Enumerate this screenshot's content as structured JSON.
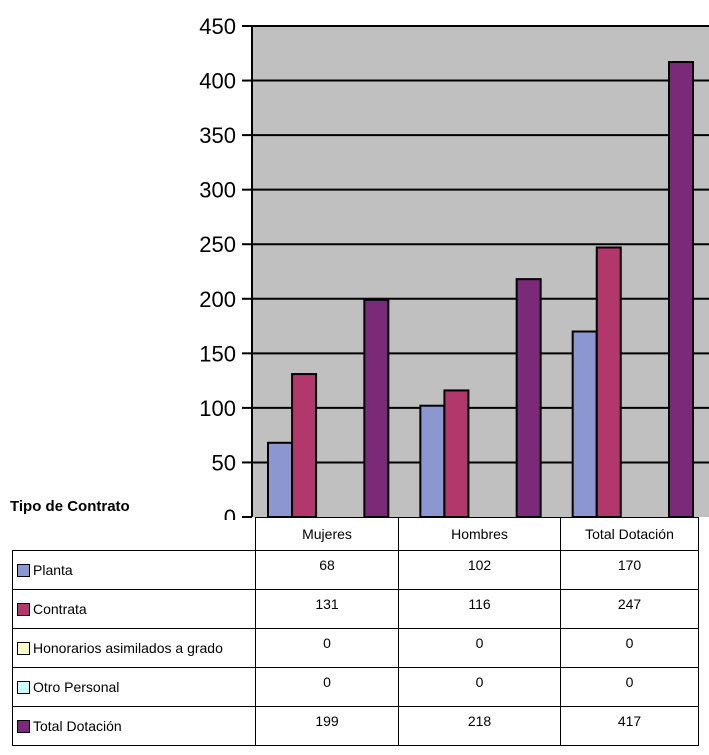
{
  "chart_data": {
    "type": "bar",
    "title": "",
    "xlabel": "",
    "ylabel": "",
    "ylim": [
      0,
      450
    ],
    "yticks": [
      0,
      50,
      100,
      150,
      200,
      250,
      300,
      350,
      400,
      450
    ],
    "grid": true,
    "categories": [
      "Mujeres",
      "Hombres",
      "Total Dotación"
    ],
    "series": [
      {
        "name": "Planta",
        "values": [
          68,
          102,
          170
        ],
        "color": "#8c96d0"
      },
      {
        "name": "Contrata",
        "values": [
          131,
          116,
          247
        ],
        "color": "#b2386c"
      },
      {
        "name": "Honorarios asimilados a grado",
        "values": [
          0,
          0,
          0
        ],
        "color": "#ffffcc"
      },
      {
        "name": "Otro Personal",
        "values": [
          0,
          0,
          0
        ],
        "color": "#ccffff"
      },
      {
        "name": "Total Dotación",
        "values": [
          199,
          218,
          417
        ],
        "color": "#7a2a78"
      }
    ]
  },
  "table": {
    "title": "Tipo de Contrato",
    "headers": [
      "Mujeres",
      "Hombres",
      "Total Dotación"
    ],
    "rows": [
      {
        "label": "Planta",
        "values": [
          "68",
          "102",
          "170"
        ]
      },
      {
        "label": "Contrata",
        "values": [
          "131",
          "116",
          "247"
        ]
      },
      {
        "label": "Honorarios asimilados a grado",
        "values": [
          "0",
          "0",
          "0"
        ]
      },
      {
        "label": "Otro Personal",
        "values": [
          "0",
          "0",
          "0"
        ]
      },
      {
        "label": "Total Dotación",
        "values": [
          "199",
          "218",
          "417"
        ]
      }
    ]
  },
  "colors": {
    "plot_background": "#c0c0c0",
    "gridline": "#000000"
  }
}
